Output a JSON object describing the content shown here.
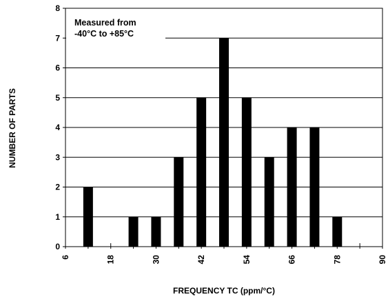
{
  "chart_data": {
    "type": "bar",
    "title": "",
    "xlabel": "FREQUENCY TC (ppm/°C)",
    "ylabel": "NUMBER OF PARTS",
    "x_tick_labels": [
      "6",
      "18",
      "30",
      "42",
      "54",
      "66",
      "78",
      "90"
    ],
    "x_tick_values": [
      6,
      18,
      30,
      42,
      54,
      66,
      78,
      90
    ],
    "xlim": [
      6,
      90
    ],
    "ylim": [
      0,
      8
    ],
    "y_ticks": [
      0,
      1,
      2,
      3,
      4,
      5,
      6,
      7,
      8
    ],
    "grid": "horizontal",
    "bar_color": "#000000",
    "x": [
      12,
      24,
      30,
      36,
      42,
      48,
      54,
      60,
      66,
      72,
      78
    ],
    "values": [
      2,
      1,
      1,
      3,
      5,
      7,
      5,
      3,
      4,
      4,
      1
    ],
    "annotation": [
      "Measured from",
      "-40°C to +85°C"
    ]
  }
}
